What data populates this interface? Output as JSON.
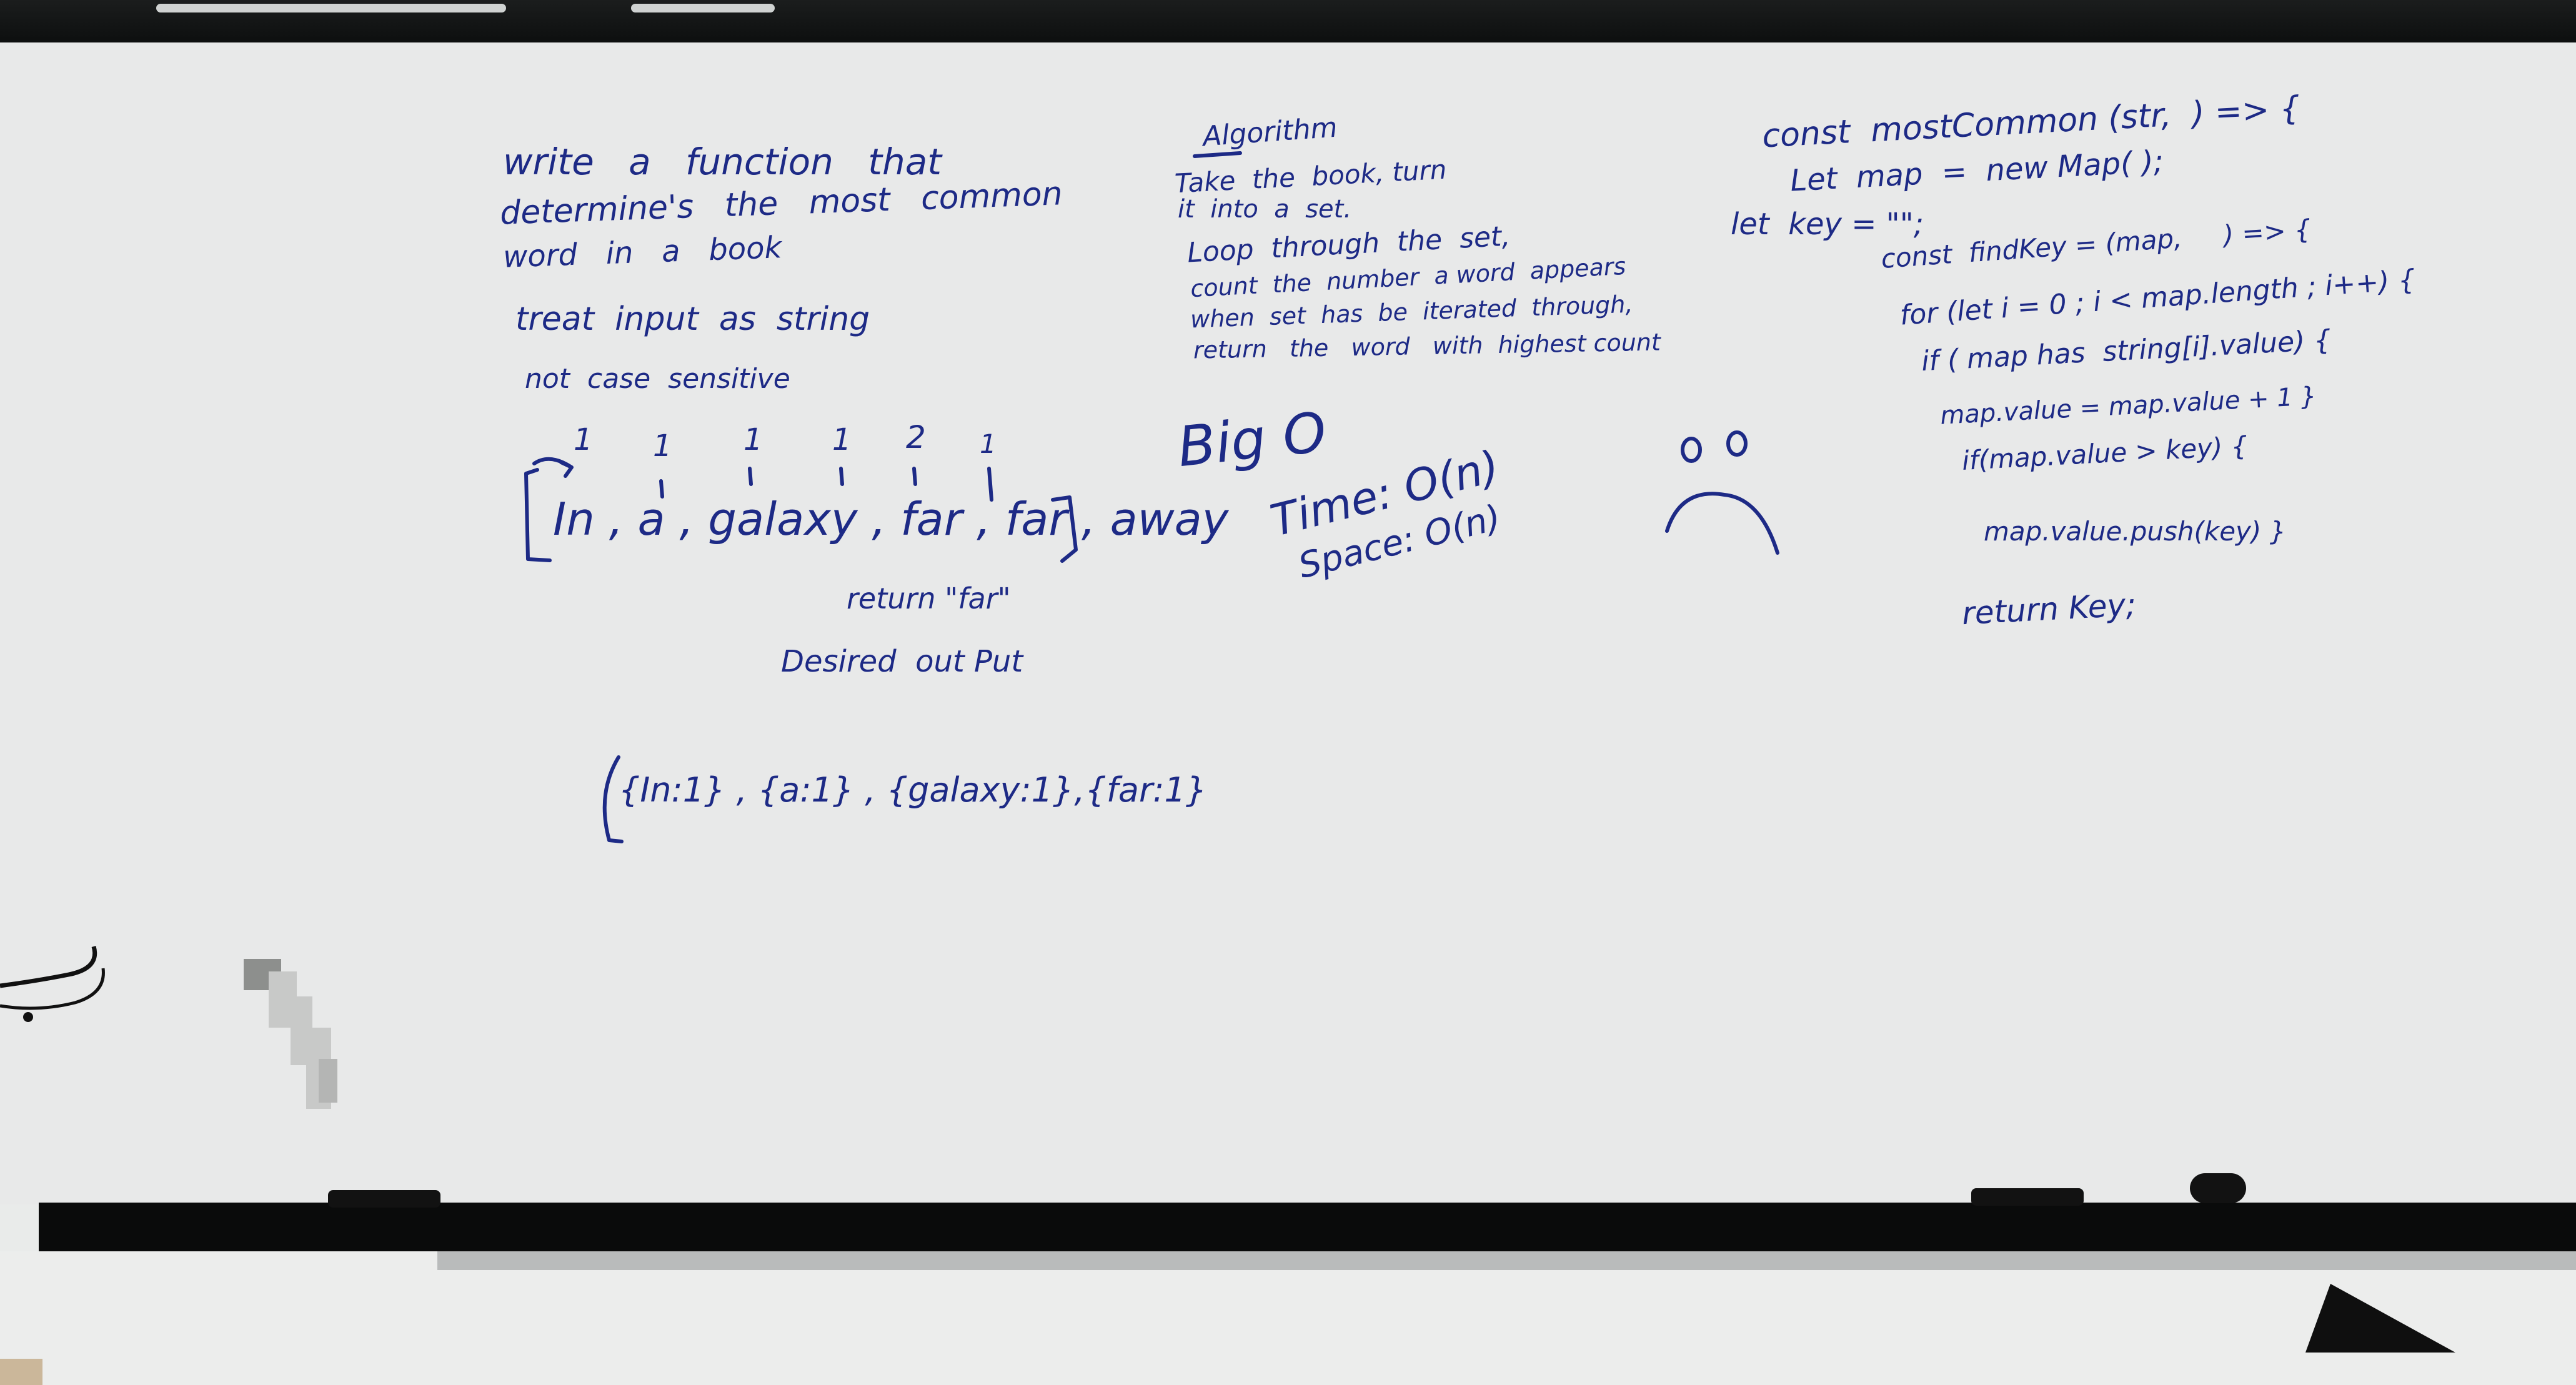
{
  "problem": {
    "line1": "write   a   function   that",
    "line2": "determine's   the   most   common",
    "line3": "word   in   a   book",
    "note1": "treat  input  as  string",
    "note2": "not  case  sensitive"
  },
  "example": {
    "counts": [
      "1",
      "1",
      "1",
      "1",
      "2",
      "1"
    ],
    "array": "In , a , galaxy , far , far , away",
    "return_label": "return \"far\"",
    "desired_label": "Desired  out Put",
    "objects": "{In:1} , {a:1} , {galaxy:1},{far:1}"
  },
  "algorithm": {
    "heading": "Algorithm",
    "lines": [
      "Take  the  book, turn",
      "it  into  a  set.",
      "Loop  through  the  set,",
      "count  the  number  a word  appears",
      "when  set  has  be  iterated  through,",
      "return   the   word   with  highest count"
    ]
  },
  "complexity": {
    "title": "Big O",
    "time": "Time: O(n)",
    "space": "Space: O(n)"
  },
  "code": {
    "lines": [
      "const  mostCommon (str,  ) => {",
      "Let  map  =  new Map( );",
      "let  key = \"\";",
      "const  findKey = (map,     ) => {",
      "for (let i = 0 ; i < map.length ; i++) {",
      "if ( map has  string[i].value) {",
      "map.value = map.value + 1 }",
      "if(map.value > key) {",
      "map.value.push(key) }",
      "return Key;"
    ]
  },
  "colors": {
    "ink": "#1d2a86",
    "board": "#e8e9e9",
    "frame": "#0a0b0b"
  }
}
